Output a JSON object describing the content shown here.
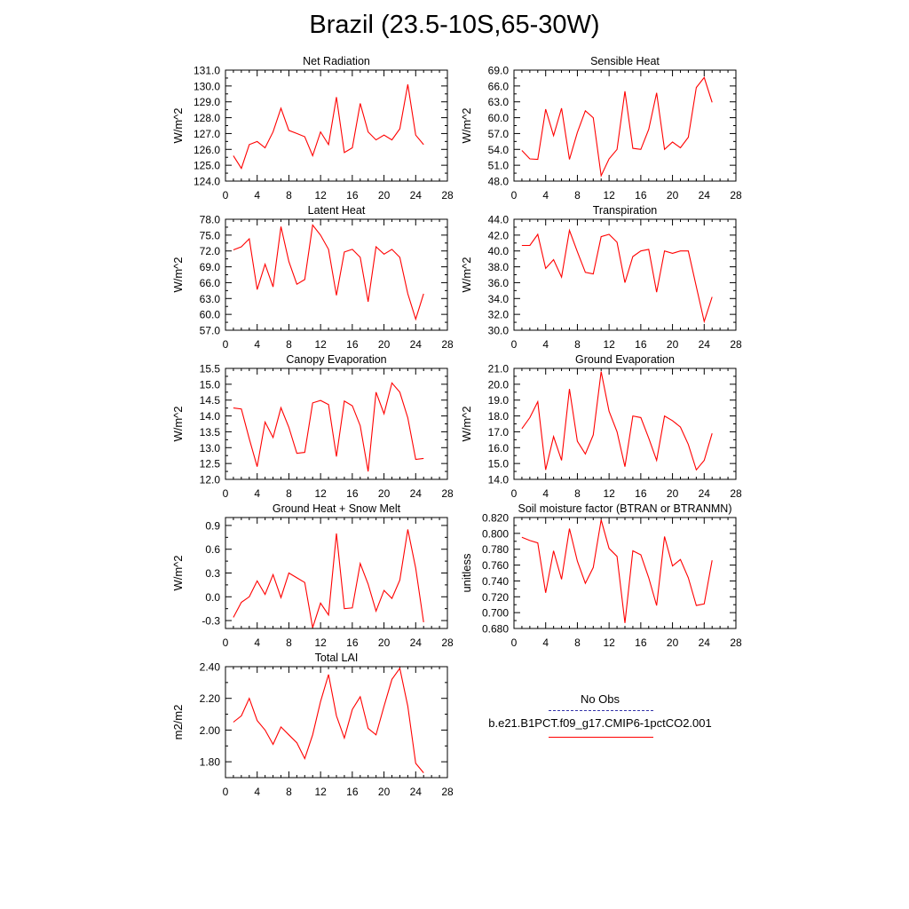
{
  "title": "Brazil (23.5-10S,65-30W)",
  "colors": {
    "model": "#ff0000",
    "obs": "#3333aa",
    "axis": "#000000"
  },
  "legend": {
    "obs_label": "No Obs",
    "model_label": "b.e21.B1PCT.f09_g17.CMIP6-1pctCO2.001"
  },
  "chart_data": [
    {
      "type": "line",
      "title": "Net Radiation",
      "ylabel": "W/m^2",
      "xlim": [
        0,
        28
      ],
      "ylim": [
        124.0,
        131.0
      ],
      "xticks": [
        0,
        4,
        8,
        12,
        16,
        20,
        24,
        28
      ],
      "xticklabels": [
        "0",
        "4",
        "8",
        "12",
        "16",
        "20",
        "24",
        "28"
      ],
      "yticks": [
        124.0,
        125.0,
        126.0,
        127.0,
        128.0,
        129.0,
        130.0,
        131.0
      ],
      "yticklabels": [
        "124.0",
        "125.0",
        "126.0",
        "127.0",
        "128.0",
        "129.0",
        "130.0",
        "131.0"
      ],
      "series": [
        {
          "x": [
            1,
            2,
            3,
            4,
            5,
            6,
            7,
            8,
            9,
            10,
            11,
            12,
            13,
            14,
            15,
            16,
            17,
            18,
            19,
            20,
            21,
            22,
            23,
            24,
            25
          ],
          "y": [
            125.6,
            124.8,
            126.3,
            126.5,
            126.1,
            127.1,
            128.6,
            127.2,
            127.0,
            126.8,
            125.6,
            127.1,
            126.3,
            129.3,
            125.8,
            126.1,
            128.9,
            127.1,
            126.6,
            126.9,
            126.6,
            127.3,
            130.1,
            126.9,
            126.3
          ]
        }
      ]
    },
    {
      "type": "line",
      "title": "Sensible Heat",
      "ylabel": "W/m^2",
      "xlim": [
        0,
        28
      ],
      "ylim": [
        48.0,
        69.0
      ],
      "xticks": [
        0,
        4,
        8,
        12,
        16,
        20,
        24,
        28
      ],
      "xticklabels": [
        "0",
        "4",
        "8",
        "12",
        "16",
        "20",
        "24",
        "28"
      ],
      "yticks": [
        48.0,
        51.0,
        54.0,
        57.0,
        60.0,
        63.0,
        66.0,
        69.0
      ],
      "yticklabels": [
        "48.0",
        "51.0",
        "54.0",
        "57.0",
        "60.0",
        "63.0",
        "66.0",
        "69.0"
      ],
      "series": [
        {
          "x": [
            1,
            2,
            3,
            4,
            5,
            6,
            7,
            8,
            9,
            10,
            11,
            12,
            13,
            14,
            15,
            16,
            17,
            18,
            19,
            20,
            21,
            22,
            23,
            24,
            25
          ],
          "y": [
            53.8,
            52.2,
            52.1,
            61.6,
            56.6,
            61.8,
            52.1,
            57.2,
            61.3,
            60.0,
            49.0,
            52.2,
            54.0,
            65.0,
            54.2,
            54.0,
            57.8,
            64.7,
            54.0,
            55.4,
            54.3,
            56.3,
            65.7,
            67.6,
            62.9
          ]
        }
      ]
    },
    {
      "type": "line",
      "title": "Latent Heat",
      "ylabel": "W/m^2",
      "xlim": [
        0,
        28
      ],
      "ylim": [
        57.0,
        78.0
      ],
      "xticks": [
        0,
        4,
        8,
        12,
        16,
        20,
        24,
        28
      ],
      "xticklabels": [
        "0",
        "4",
        "8",
        "12",
        "16",
        "20",
        "24",
        "28"
      ],
      "yticks": [
        57.0,
        60.0,
        63.0,
        66.0,
        69.0,
        72.0,
        75.0,
        78.0
      ],
      "yticklabels": [
        "57.0",
        "60.0",
        "63.0",
        "66.0",
        "69.0",
        "72.0",
        "75.0",
        "78.0"
      ],
      "series": [
        {
          "x": [
            1,
            2,
            3,
            4,
            5,
            6,
            7,
            8,
            9,
            10,
            11,
            12,
            13,
            14,
            15,
            16,
            17,
            18,
            19,
            20,
            21,
            22,
            23,
            24,
            25
          ],
          "y": [
            72.2,
            72.8,
            74.3,
            64.7,
            69.5,
            65.2,
            76.6,
            70.0,
            65.7,
            66.6,
            76.9,
            75.0,
            72.3,
            63.6,
            71.8,
            72.3,
            70.8,
            62.4,
            72.8,
            71.4,
            72.3,
            70.8,
            63.9,
            59.1,
            63.9
          ]
        }
      ]
    },
    {
      "type": "line",
      "title": "Transpiration",
      "ylabel": "W/m^2",
      "xlim": [
        0,
        28
      ],
      "ylim": [
        30.0,
        44.0
      ],
      "xticks": [
        0,
        4,
        8,
        12,
        16,
        20,
        24,
        28
      ],
      "xticklabels": [
        "0",
        "4",
        "8",
        "12",
        "16",
        "20",
        "24",
        "28"
      ],
      "yticks": [
        30.0,
        32.0,
        34.0,
        36.0,
        38.0,
        40.0,
        42.0,
        44.0
      ],
      "yticklabels": [
        "30.0",
        "32.0",
        "34.0",
        "36.0",
        "38.0",
        "40.0",
        "42.0",
        "44.0"
      ],
      "series": [
        {
          "x": [
            1,
            2,
            3,
            4,
            5,
            6,
            7,
            8,
            9,
            10,
            11,
            12,
            13,
            14,
            15,
            16,
            17,
            18,
            19,
            20,
            21,
            22,
            23,
            24,
            25
          ],
          "y": [
            40.7,
            40.7,
            42.1,
            37.8,
            38.9,
            36.7,
            42.6,
            39.9,
            37.3,
            37.1,
            41.8,
            42.1,
            41.1,
            36.0,
            39.3,
            40.0,
            40.2,
            34.8,
            40.0,
            39.7,
            40.0,
            40.0,
            35.5,
            31.1,
            34.2
          ]
        }
      ]
    },
    {
      "type": "line",
      "title": "Canopy Evaporation",
      "ylabel": "W/m^2",
      "xlim": [
        0,
        28
      ],
      "ylim": [
        12.0,
        15.5
      ],
      "xticks": [
        0,
        4,
        8,
        12,
        16,
        20,
        24,
        28
      ],
      "xticklabels": [
        "0",
        "4",
        "8",
        "12",
        "16",
        "20",
        "24",
        "28"
      ],
      "yticks": [
        12.0,
        12.5,
        13.0,
        13.5,
        14.0,
        14.5,
        15.0,
        15.5
      ],
      "yticklabels": [
        "12.0",
        "12.5",
        "13.0",
        "13.5",
        "14.0",
        "14.5",
        "15.0",
        "15.5"
      ],
      "series": [
        {
          "x": [
            1,
            2,
            3,
            4,
            5,
            6,
            7,
            8,
            9,
            10,
            11,
            12,
            13,
            14,
            15,
            16,
            17,
            18,
            19,
            20,
            21,
            22,
            23,
            24,
            25
          ],
          "y": [
            14.25,
            14.22,
            13.28,
            12.4,
            13.81,
            13.32,
            14.26,
            13.64,
            12.82,
            12.85,
            14.41,
            14.49,
            14.36,
            12.72,
            14.47,
            14.32,
            13.69,
            12.25,
            14.75,
            14.07,
            15.04,
            14.75,
            13.94,
            12.63,
            12.66
          ]
        }
      ]
    },
    {
      "type": "line",
      "title": "Ground Evaporation",
      "ylabel": "W/m^2",
      "xlim": [
        0,
        28
      ],
      "ylim": [
        14.0,
        21.0
      ],
      "xticks": [
        0,
        4,
        8,
        12,
        16,
        20,
        24,
        28
      ],
      "xticklabels": [
        "0",
        "4",
        "8",
        "12",
        "16",
        "20",
        "24",
        "28"
      ],
      "yticks": [
        14.0,
        15.0,
        16.0,
        17.0,
        18.0,
        19.0,
        20.0,
        21.0
      ],
      "yticklabels": [
        "14.0",
        "15.0",
        "16.0",
        "17.0",
        "18.0",
        "19.0",
        "20.0",
        "21.0"
      ],
      "series": [
        {
          "x": [
            1,
            2,
            3,
            4,
            5,
            6,
            7,
            8,
            9,
            10,
            11,
            12,
            13,
            14,
            15,
            16,
            17,
            18,
            19,
            20,
            21,
            22,
            23,
            24,
            25
          ],
          "y": [
            17.2,
            17.9,
            18.9,
            14.6,
            16.7,
            15.2,
            19.7,
            16.4,
            15.6,
            16.8,
            20.8,
            18.3,
            17.0,
            14.8,
            18.0,
            17.9,
            16.6,
            15.2,
            18.0,
            17.7,
            17.3,
            16.2,
            14.6,
            15.2,
            16.9
          ]
        }
      ]
    },
    {
      "type": "line",
      "title": "Ground Heat + Snow Melt",
      "ylabel": "W/m^2",
      "xlim": [
        0,
        28
      ],
      "ylim": [
        -0.4,
        1.0
      ],
      "xticks": [
        0,
        4,
        8,
        12,
        16,
        20,
        24,
        28
      ],
      "xticklabels": [
        "0",
        "4",
        "8",
        "12",
        "16",
        "20",
        "24",
        "28"
      ],
      "yticks": [
        -0.3,
        0.0,
        0.3,
        0.6,
        0.9
      ],
      "yticklabels": [
        "-0.3",
        "0.0",
        "0.3",
        "0.6",
        "0.9"
      ],
      "series": [
        {
          "x": [
            1,
            2,
            3,
            4,
            5,
            6,
            7,
            8,
            9,
            10,
            11,
            12,
            13,
            14,
            15,
            16,
            17,
            18,
            19,
            20,
            21,
            22,
            23,
            24,
            25
          ],
          "y": [
            -0.26,
            -0.07,
            0.0,
            0.2,
            0.03,
            0.28,
            -0.01,
            0.3,
            0.24,
            0.18,
            -0.39,
            -0.08,
            -0.23,
            0.8,
            -0.15,
            -0.14,
            0.42,
            0.16,
            -0.18,
            0.08,
            -0.02,
            0.21,
            0.85,
            0.36,
            -0.32
          ]
        }
      ]
    },
    {
      "type": "line",
      "title": "Soil moisture factor (BTRAN or BTRANMN)",
      "ylabel": "unitless",
      "xlim": [
        0,
        28
      ],
      "ylim": [
        0.68,
        0.82
      ],
      "xticks": [
        0,
        4,
        8,
        12,
        16,
        20,
        24,
        28
      ],
      "xticklabels": [
        "0",
        "4",
        "8",
        "12",
        "16",
        "20",
        "24",
        "28"
      ],
      "yticks": [
        0.68,
        0.7,
        0.72,
        0.74,
        0.76,
        0.78,
        0.8,
        0.82
      ],
      "yticklabels": [
        "0.680",
        "0.700",
        "0.720",
        "0.740",
        "0.760",
        "0.780",
        "0.800",
        "0.820"
      ],
      "series": [
        {
          "x": [
            1,
            2,
            3,
            4,
            5,
            6,
            7,
            8,
            9,
            10,
            11,
            12,
            13,
            14,
            15,
            16,
            17,
            18,
            19,
            20,
            21,
            22,
            23,
            24,
            25
          ],
          "y": [
            0.795,
            0.791,
            0.788,
            0.725,
            0.778,
            0.742,
            0.806,
            0.765,
            0.737,
            0.757,
            0.817,
            0.781,
            0.771,
            0.687,
            0.778,
            0.773,
            0.744,
            0.709,
            0.796,
            0.759,
            0.767,
            0.744,
            0.709,
            0.711,
            0.766
          ]
        }
      ]
    },
    {
      "type": "line",
      "title": "Total LAI",
      "ylabel": "m2/m2",
      "xlim": [
        0,
        28
      ],
      "ylim": [
        1.7,
        2.4
      ],
      "xticks": [
        0,
        4,
        8,
        12,
        16,
        20,
        24,
        28
      ],
      "xticklabels": [
        "0",
        "4",
        "8",
        "12",
        "16",
        "20",
        "24",
        "28"
      ],
      "yticks": [
        1.8,
        2.0,
        2.2,
        2.4
      ],
      "yticklabels": [
        "1.80",
        "2.00",
        "2.20",
        "2.40"
      ],
      "series": [
        {
          "x": [
            1,
            2,
            3,
            4,
            5,
            6,
            7,
            8,
            9,
            10,
            11,
            12,
            13,
            14,
            15,
            16,
            17,
            18,
            19,
            20,
            21,
            22,
            23,
            24,
            25
          ],
          "y": [
            2.05,
            2.09,
            2.2,
            2.06,
            2.0,
            1.91,
            2.02,
            1.97,
            1.92,
            1.82,
            1.97,
            2.18,
            2.35,
            2.09,
            1.95,
            2.13,
            2.21,
            2.01,
            1.97,
            2.15,
            2.32,
            2.39,
            2.15,
            1.79,
            1.73
          ]
        }
      ]
    }
  ]
}
